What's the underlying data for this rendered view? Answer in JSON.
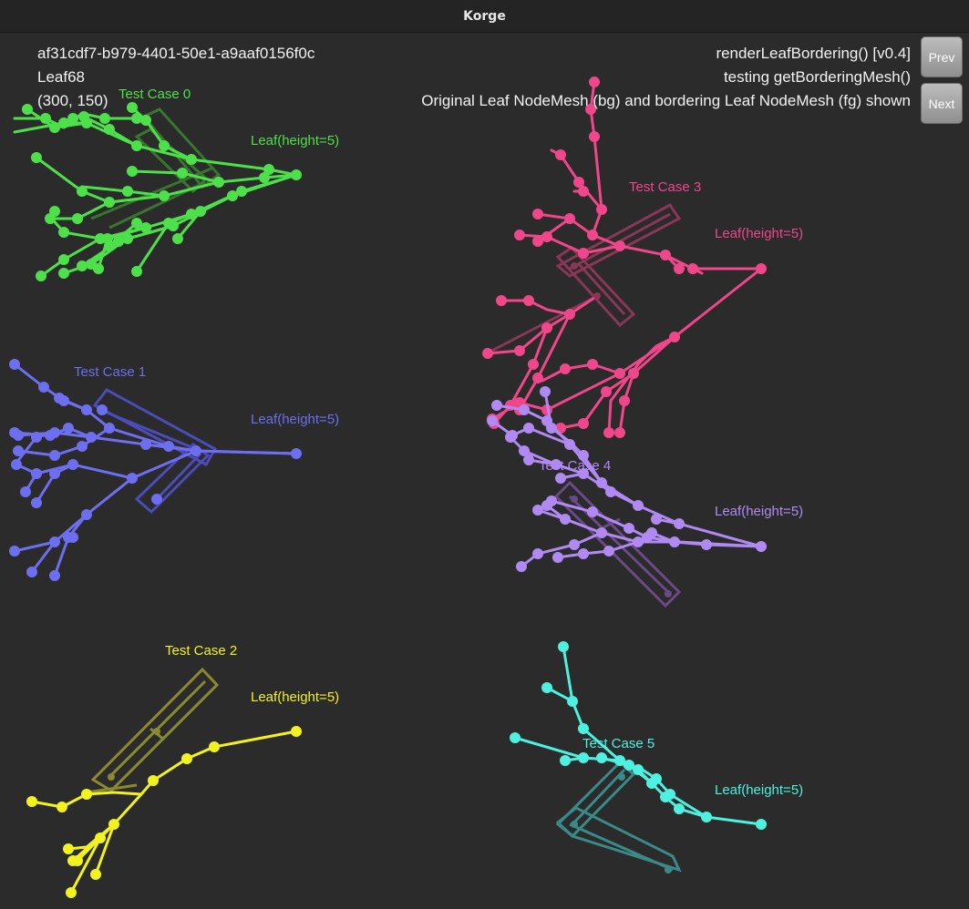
{
  "window": {
    "title": "Korge"
  },
  "info": {
    "uuid": "af31cdf7-b979-4401-50e1-a9aaf0156f0c",
    "leaf": "Leaf68",
    "coords": "(300, 150)",
    "function": "renderLeafBordering() [v0.4]",
    "testing": "testing getBorderingMesh()",
    "description": "Original Leaf NodeMesh (bg) and bordering Leaf NodeMesh (fg) shown"
  },
  "buttons": {
    "prev": "Prev",
    "next": "Next"
  },
  "test_cases": [
    {
      "label": "Test Case 0",
      "leaf_label": "Leaf(height=5)",
      "color": "#4ee04a",
      "box_color": "#3a7a30"
    },
    {
      "label": "Test Case 1",
      "leaf_label": "Leaf(height=5)",
      "color": "#6d6ef0",
      "box_color": "#4b4cb8"
    },
    {
      "label": "Test Case 2",
      "leaf_label": "Leaf(height=5)",
      "color": "#f2f21e",
      "box_color": "#8a8a30"
    },
    {
      "label": "Test Case 3",
      "leaf_label": "Leaf(height=5)",
      "color": "#f0468a",
      "box_color": "#8a3656"
    },
    {
      "label": "Test Case 4",
      "leaf_label": "Leaf(height=5)",
      "color": "#b08af2",
      "box_color": "#6a4a86"
    },
    {
      "label": "Test Case 5",
      "leaf_label": "Leaf(height=5)",
      "color": "#4ef0e0",
      "box_color": "#3a8a88"
    }
  ]
}
